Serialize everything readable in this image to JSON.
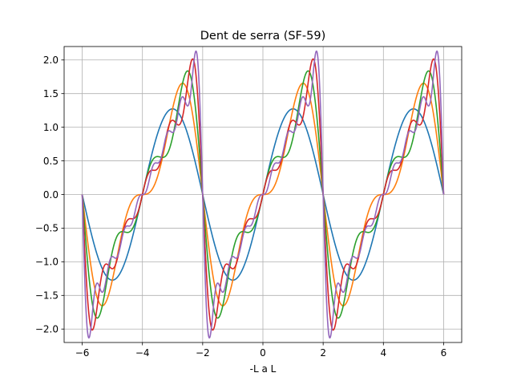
{
  "chart_data": {
    "type": "line",
    "title": "Dent de serra (SF-59)",
    "xlabel": "-L a L",
    "ylabel": "",
    "xlim": [
      -6.6,
      6.6
    ],
    "ylim": [
      -2.2,
      2.2
    ],
    "grid": true,
    "x_ticks": [
      -6,
      -4,
      -2,
      0,
      2,
      4,
      6
    ],
    "x_tick_labels": [
      "−6",
      "−4",
      "−2",
      "0",
      "2",
      "4",
      "6"
    ],
    "y_ticks": [
      -2.0,
      -1.5,
      -1.0,
      -0.5,
      0.0,
      0.5,
      1.0,
      1.5,
      2.0
    ],
    "y_tick_labels": [
      "−2.0",
      "−1.5",
      "−1.0",
      "−0.5",
      "0.0",
      "0.5",
      "1.0",
      "1.5",
      "2.0"
    ],
    "period": 4,
    "x_range": [
      -6,
      6
    ],
    "series": [
      {
        "terms": 1,
        "color": "#1f77b4"
      },
      {
        "terms": 2,
        "color": "#ff7f0e"
      },
      {
        "terms": 3,
        "color": "#2ca02c"
      },
      {
        "terms": 5,
        "color": "#d62728"
      },
      {
        "terms": 8,
        "color": "#9467bd"
      }
    ]
  }
}
